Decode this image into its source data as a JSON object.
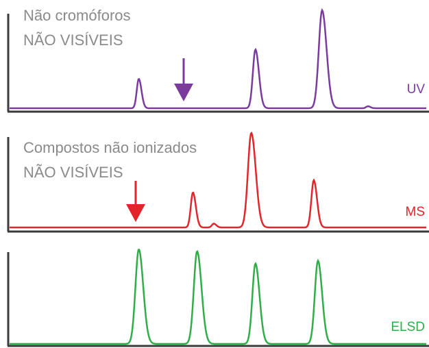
{
  "colors": {
    "uv": "#7b3a9e",
    "ms": "#e3252b",
    "elsd": "#2fae48",
    "axis": "#3a3a3a",
    "note": "#8a8a8a"
  },
  "panels": [
    {
      "detector": "UV",
      "color": "#7b3a9e",
      "note_lines": [
        "Não cromóforos",
        "NÃO VISÍVEIS"
      ],
      "missing_marker": "down-arrow",
      "peaks": [
        {
          "rt": 0.31,
          "height": 0.3
        },
        {
          "rt": 0.59,
          "height": 0.6
        },
        {
          "rt": 0.75,
          "height": 1.0
        },
        {
          "rt": 0.86,
          "height": 0.02
        }
      ]
    },
    {
      "detector": "MS",
      "color": "#e3252b",
      "note_lines": [
        "Compostos não ionizados",
        "NÃO VISÍVEIS"
      ],
      "missing_marker": "down-arrow",
      "peaks": [
        {
          "rt": 0.44,
          "height": 0.37
        },
        {
          "rt": 0.49,
          "height": 0.04
        },
        {
          "rt": 0.58,
          "height": 1.0
        },
        {
          "rt": 0.73,
          "height": 0.5
        }
      ]
    },
    {
      "detector": "ELSD",
      "color": "#2fae48",
      "note_lines": [],
      "missing_marker": "",
      "peaks": [
        {
          "rt": 0.31,
          "height": 1.0
        },
        {
          "rt": 0.45,
          "height": 0.98
        },
        {
          "rt": 0.59,
          "height": 0.85
        },
        {
          "rt": 0.74,
          "height": 0.88
        }
      ]
    }
  ]
}
